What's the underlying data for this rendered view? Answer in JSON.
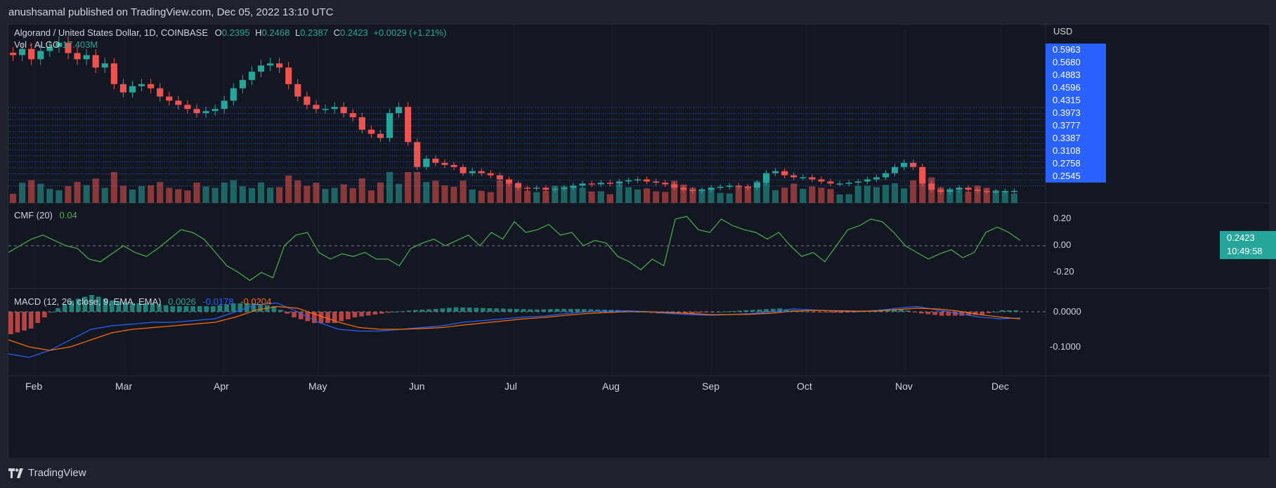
{
  "header": {
    "published": "anushsamal published on TradingView.com, Dec 05, 2022 13:10 UTC"
  },
  "symbol": {
    "name": "Algorand / United States Dollar, 1D, COINBASE",
    "o_label": "O",
    "o": "0.2395",
    "h_label": "H",
    "h": "0.2468",
    "l_label": "L",
    "l": "0.2387",
    "c_label": "C",
    "c": "0.2423",
    "change": "+0.0029 (+1.21%)"
  },
  "volume": {
    "label": "Vol · ALGO",
    "value": "17.403M"
  },
  "price_axis": {
    "currency": "USD",
    "labels": [
      "0.5963",
      "0.5680",
      "0.4883",
      "0.4596",
      "0.4315",
      "0.3973",
      "0.3777",
      "0.3387",
      "0.3108",
      "0.2758",
      "0.2545"
    ],
    "current": "0.2423",
    "countdown": "10:49:58"
  },
  "cmf": {
    "label": "CMF (20)",
    "value": "0.04",
    "ticks": [
      "0.20",
      "0.00",
      "-0.20"
    ]
  },
  "macd": {
    "label": "MACD (12, 26, close, 9, EMA, EMA)",
    "hist": "0.0026",
    "macd": "-0.0178",
    "signal": "-0.0204",
    "ticks": [
      "0.0000",
      "-0.1000"
    ]
  },
  "time_axis": [
    "Feb",
    "Mar",
    "Apr",
    "May",
    "Jun",
    "Jul",
    "Aug",
    "Sep",
    "Oct",
    "Nov",
    "Dec"
  ],
  "colors": {
    "up": "#26a69a",
    "down": "#ef5350",
    "bg": "#131722",
    "cmf": "#4caf50",
    "macd_line": "#2962ff",
    "signal_line": "#ff6d00",
    "level_lines": "#2962ff"
  },
  "footer": {
    "brand": "TradingView"
  },
  "chart_data": {
    "type": "line",
    "price_closes": [
      0.57,
      0.585,
      0.56,
      0.58,
      0.59,
      0.6,
      0.575,
      0.56,
      0.57,
      0.54,
      0.55,
      0.5,
      0.48,
      0.495,
      0.5,
      0.49,
      0.47,
      0.46,
      0.45,
      0.44,
      0.43,
      0.435,
      0.44,
      0.46,
      0.49,
      0.51,
      0.53,
      0.545,
      0.55,
      0.54,
      0.5,
      0.47,
      0.45,
      0.44,
      0.44,
      0.445,
      0.43,
      0.42,
      0.39,
      0.38,
      0.37,
      0.43,
      0.445,
      0.36,
      0.3,
      0.32,
      0.31,
      0.305,
      0.3,
      0.285,
      0.29,
      0.285,
      0.28,
      0.27,
      0.26,
      0.25,
      0.248,
      0.25,
      0.245,
      0.247,
      0.25,
      0.255,
      0.26,
      0.258,
      0.262,
      0.26,
      0.265,
      0.268,
      0.27,
      0.265,
      0.262,
      0.258,
      0.25,
      0.245,
      0.242,
      0.245,
      0.25,
      0.252,
      0.255,
      0.253,
      0.25,
      0.262,
      0.285,
      0.29,
      0.28,
      0.275,
      0.275,
      0.27,
      0.265,
      0.26,
      0.26,
      0.262,
      0.265,
      0.27,
      0.275,
      0.285,
      0.3,
      0.31,
      0.3,
      0.26,
      0.245,
      0.24,
      0.245,
      0.25,
      0.245,
      0.242,
      0.24,
      0.241,
      0.242,
      0.2423
    ],
    "cmf": [
      -0.05,
      0.0,
      0.05,
      0.08,
      0.04,
      0.0,
      -0.02,
      -0.1,
      -0.12,
      -0.06,
      0.0,
      -0.05,
      -0.08,
      -0.02,
      0.05,
      0.12,
      0.1,
      0.05,
      -0.05,
      -0.15,
      -0.2,
      -0.26,
      -0.2,
      -0.24,
      0.0,
      0.08,
      0.1,
      -0.05,
      -0.1,
      -0.06,
      -0.08,
      -0.05,
      -0.1,
      -0.1,
      -0.15,
      -0.02,
      0.02,
      0.05,
      0.0,
      0.04,
      0.08,
      0.0,
      0.1,
      0.05,
      0.18,
      0.1,
      0.12,
      0.16,
      0.08,
      0.1,
      0.0,
      0.04,
      0.02,
      -0.08,
      -0.12,
      -0.18,
      -0.1,
      -0.15,
      0.2,
      0.22,
      0.12,
      0.1,
      0.2,
      0.15,
      0.12,
      0.1,
      0.05,
      0.1,
      0.0,
      -0.08,
      -0.05,
      -0.12,
      0.0,
      0.12,
      0.15,
      0.2,
      0.18,
      0.1,
      0.0,
      -0.05,
      -0.1,
      -0.06,
      -0.03,
      -0.09,
      -0.05,
      0.1,
      0.14,
      0.1,
      0.04
    ],
    "macd": [
      -0.12,
      -0.13,
      -0.11,
      -0.08,
      -0.05,
      -0.04,
      -0.035,
      -0.03,
      -0.03,
      -0.025,
      -0.02,
      0.0,
      0.02,
      0.025,
      0.0,
      -0.03,
      -0.05,
      -0.055,
      -0.055,
      -0.05,
      -0.045,
      -0.04,
      -0.03,
      -0.025,
      -0.02,
      -0.015,
      -0.012,
      -0.005,
      0.0,
      0.002,
      0.003,
      0.0,
      -0.005,
      -0.008,
      -0.01,
      -0.008,
      -0.005,
      0.0,
      0.008,
      0.005,
      0.002,
      0.0,
      0.003,
      0.01,
      0.015,
      0.005,
      -0.005,
      -0.015,
      -0.02,
      -0.0178
    ],
    "signal": [
      -0.08,
      -0.1,
      -0.11,
      -0.1,
      -0.08,
      -0.06,
      -0.05,
      -0.045,
      -0.04,
      -0.035,
      -0.03,
      -0.015,
      0.005,
      0.015,
      0.01,
      -0.01,
      -0.03,
      -0.045,
      -0.05,
      -0.05,
      -0.048,
      -0.045,
      -0.038,
      -0.032,
      -0.026,
      -0.02,
      -0.016,
      -0.01,
      -0.005,
      -0.002,
      0.0,
      0.0,
      -0.002,
      -0.005,
      -0.008,
      -0.008,
      -0.007,
      -0.004,
      0.002,
      0.004,
      0.003,
      0.002,
      0.002,
      0.006,
      0.01,
      0.008,
      0.002,
      -0.008,
      -0.015,
      -0.0204
    ]
  }
}
